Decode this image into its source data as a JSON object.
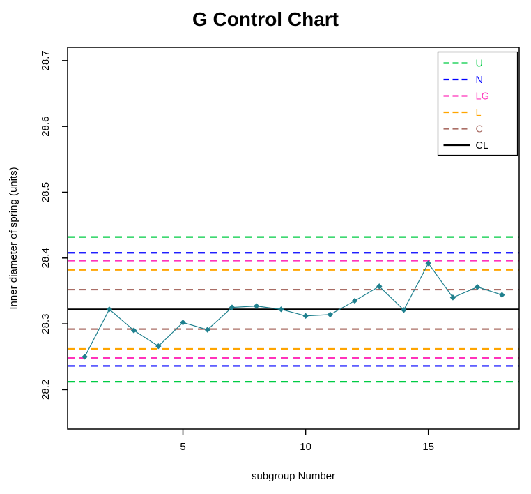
{
  "chart_data": {
    "type": "line",
    "title": "G Control Chart",
    "xlabel": "subgroup Number",
    "ylabel": "Inner diameter of spring (units)",
    "x": [
      1,
      2,
      3,
      4,
      5,
      6,
      7,
      8,
      9,
      10,
      11,
      12,
      13,
      14,
      15,
      16,
      17,
      18
    ],
    "values": [
      28.25,
      28.322,
      28.29,
      28.266,
      28.302,
      28.291,
      28.325,
      28.327,
      28.322,
      28.312,
      28.314,
      28.335,
      28.357,
      28.321,
      28.392,
      28.34,
      28.356,
      28.344
    ],
    "series_name": "Inner diameter of spring",
    "series_color": "#1f808e",
    "marker": "diamond",
    "xlim": [
      0.3,
      18.7
    ],
    "ylim": [
      28.14,
      28.72
    ],
    "xticks": [
      5,
      10,
      15
    ],
    "yticks": [
      28.2,
      28.3,
      28.4,
      28.5,
      28.6,
      28.7
    ],
    "grid": false,
    "legend_position": "top-right",
    "control_lines": [
      {
        "label": "U",
        "color": "#00cc44",
        "style": "dashed",
        "values": [
          28.432,
          28.212
        ]
      },
      {
        "label": "N",
        "color": "#0000ff",
        "style": "dashed",
        "values": [
          28.408,
          28.236
        ]
      },
      {
        "label": "LG",
        "color": "#ff33bb",
        "style": "dashed",
        "values": [
          28.396,
          28.248
        ]
      },
      {
        "label": "L",
        "color": "#ffa500",
        "style": "dashed",
        "values": [
          28.382,
          28.262
        ]
      },
      {
        "label": "C",
        "color": "#aa6e66",
        "style": "dashed",
        "values": [
          28.352,
          28.292
        ]
      },
      {
        "label": "CL",
        "color": "#000000",
        "style": "solid",
        "values": [
          28.322
        ]
      }
    ]
  }
}
